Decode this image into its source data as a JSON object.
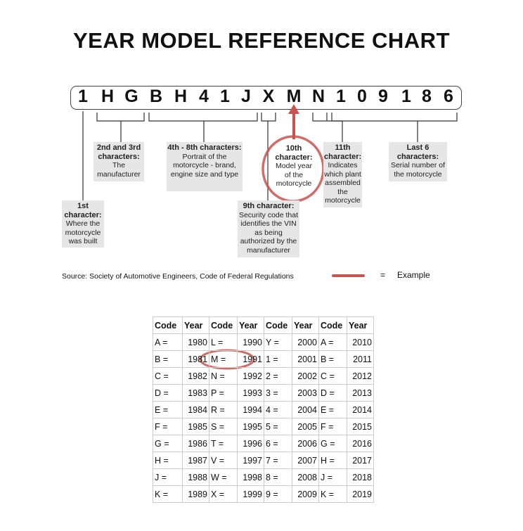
{
  "title": "YEAR MODEL REFERENCE CHART",
  "vin": [
    "1",
    "H",
    "G",
    "B",
    "H",
    "4",
    "1",
    "J",
    "X",
    "M",
    "N",
    "1",
    "0",
    "9",
    "1",
    "8",
    "6"
  ],
  "labels": {
    "first": {
      "head": "1st character:",
      "body": "Where the motorcycle was built"
    },
    "second_third": {
      "head": "2nd and 3rd characters:",
      "body": "The manufacturer"
    },
    "fourth_eighth": {
      "head": "4th - 8th characters:",
      "body": "Portrait of the motorcycle - brand, engine size and type"
    },
    "ninth": {
      "head": "9th character:",
      "body": "Security code that identifies the VIN as being authorized by the manufacturer"
    },
    "tenth": {
      "head": "10th character:",
      "body": "Model year of the motorcycle"
    },
    "eleventh": {
      "head": "11th character:",
      "body": "Indicates which plant assembled the motorcycle"
    },
    "last_six": {
      "head": "Last 6 characters:",
      "body": "Serial number of the motorcycle"
    }
  },
  "source": "Source:  Society of Automotive Engineers, Code of Federal Regulations",
  "legend": {
    "equals": "=",
    "label": "Example",
    "color": "#c9534f"
  },
  "table": {
    "headers": [
      "Code",
      "Year",
      "Code",
      "Year",
      "Code",
      "Year",
      "Code",
      "Year"
    ],
    "rows": [
      [
        "A =",
        "1980",
        "L =",
        "1990",
        "Y =",
        "2000",
        "A =",
        "2010"
      ],
      [
        "B =",
        "1981",
        "M =",
        "1991",
        "1 =",
        "2001",
        "B =",
        "2011"
      ],
      [
        "C =",
        "1982",
        "N =",
        "1992",
        "2 =",
        "2002",
        "C =",
        "2012"
      ],
      [
        "D =",
        "1983",
        "P =",
        "1993",
        "3 =",
        "2003",
        "D =",
        "2013"
      ],
      [
        "E =",
        "1984",
        "R =",
        "1994",
        "4 =",
        "2004",
        "E =",
        "2014"
      ],
      [
        "F =",
        "1985",
        "S =",
        "1995",
        "5 =",
        "2005",
        "F =",
        "2015"
      ],
      [
        "G =",
        "1986",
        "T =",
        "1996",
        "6 =",
        "2006",
        "G =",
        "2016"
      ],
      [
        "H =",
        "1987",
        "V =",
        "1997",
        "7 =",
        "2007",
        "H =",
        "2017"
      ],
      [
        "J =",
        "1988",
        "W =",
        "1998",
        "8 =",
        "2008",
        "J =",
        "2018"
      ],
      [
        "K =",
        "1989",
        "X =",
        "1999",
        "9 =",
        "2009",
        "K =",
        "2019"
      ]
    ]
  }
}
